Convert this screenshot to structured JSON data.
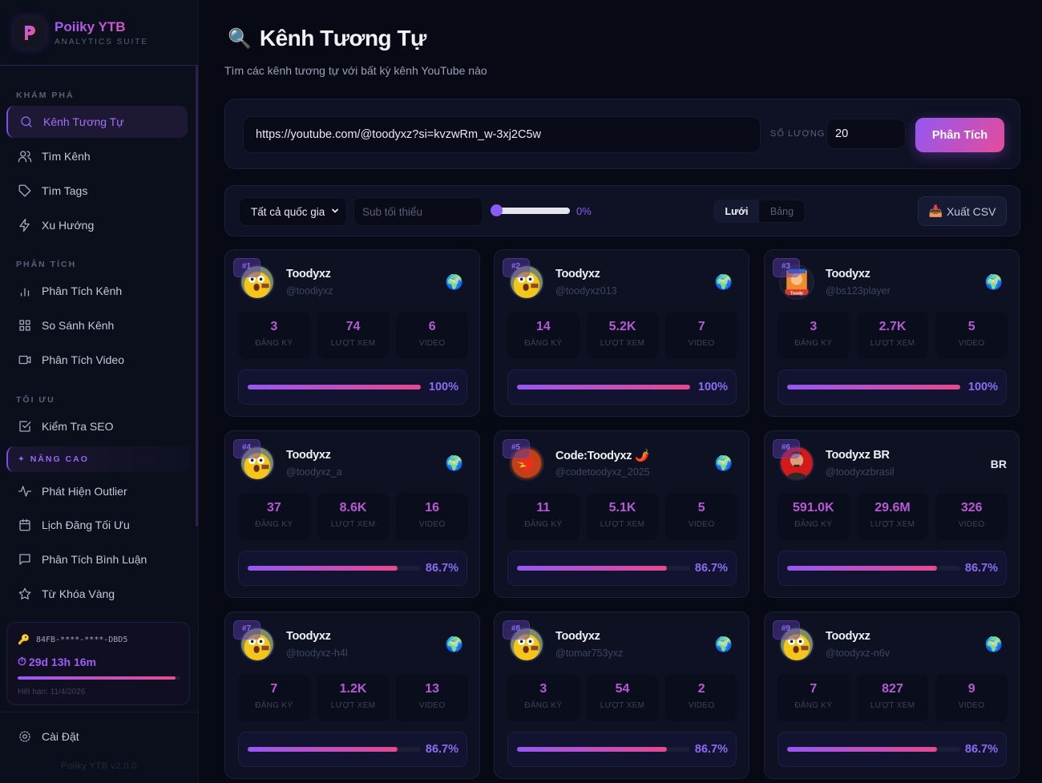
{
  "app": {
    "name": "Poiiky YTB",
    "subtitle": "ANALYTICS SUITE",
    "version": "Poiiky YTB v2.0.0"
  },
  "sidebar": {
    "sections": [
      {
        "label": "KHÁM PHÁ"
      },
      {
        "label": "PHÂN TÍCH"
      },
      {
        "label": "TỐI ƯU"
      }
    ],
    "items": [
      {
        "label": "Kênh Tương Tự",
        "icon": "search-icon",
        "active": true
      },
      {
        "label": "Tìm Kênh",
        "icon": "users-icon"
      },
      {
        "label": "Tìm Tags",
        "icon": "tag-icon"
      },
      {
        "label": "Xu Hướng",
        "icon": "lightning-icon"
      },
      {
        "label": "Phân Tích Kênh",
        "icon": "bar-chart-icon"
      },
      {
        "label": "So Sánh Kênh",
        "icon": "grid-icon"
      },
      {
        "label": "Phân Tích Video",
        "icon": "video-icon"
      },
      {
        "label": "Kiểm Tra SEO",
        "icon": "checkbox-icon"
      },
      {
        "label": "Phát Hiện Outlier",
        "icon": "activity-icon"
      },
      {
        "label": "Lịch Đăng Tối Ưu",
        "icon": "calendar-icon"
      },
      {
        "label": "Phân Tích Bình Luận",
        "icon": "comment-icon"
      },
      {
        "label": "Từ Khóa Vàng",
        "icon": "star-icon"
      },
      {
        "label": "Cài Đặt",
        "icon": "gear-icon"
      }
    ],
    "pro_banner": "✦ NÂNG CAO",
    "license": {
      "key_icon": "🔑",
      "key": "84FB-****-****-DBD5",
      "time_icon": "⏱",
      "remaining": "29d 13h 16m",
      "progress_pct": 97,
      "expires": "Hết hạn: 11/4/2026"
    }
  },
  "page": {
    "title_emoji": "🔍",
    "title": "Kênh Tương Tự",
    "subtitle": "Tìm các kênh tương tự với bất kỳ kênh YouTube nào"
  },
  "search": {
    "url_value": "https://youtube.com/@toodyxz?si=kvzwRm_w-3xj2C5w",
    "qty_label": "SỐ LƯỢNG",
    "qty_value": "20",
    "analyze_label": "Phân Tích"
  },
  "filters": {
    "country_selected": "Tất cả quốc gia",
    "min_sub_placeholder": "Sub tối thiểu",
    "slider_value": "0%",
    "view_grid": "Lưới",
    "view_table": "Bảng",
    "export_icon": "📥",
    "export_label": "Xuất CSV"
  },
  "stat_labels": {
    "subs": "ĐĂNG KÝ",
    "views": "LƯỢT XEM",
    "videos": "VIDEO"
  },
  "channels": [
    {
      "rank": "#1",
      "name": "Toodyxz",
      "handle": "@toodiyxz",
      "country": "🌍",
      "subs": "3",
      "views": "74",
      "videos": "6",
      "match": "100%",
      "match_pct": 100,
      "avatar": "jake"
    },
    {
      "rank": "#2",
      "name": "Toodyxz",
      "handle": "@toodyxz013",
      "country": "🌍",
      "subs": "14",
      "views": "5.2K",
      "videos": "7",
      "match": "100%",
      "match_pct": 100,
      "avatar": "jake"
    },
    {
      "rank": "#3",
      "name": "Toodyxz",
      "handle": "@bs123player",
      "country": "🌍",
      "subs": "3",
      "views": "2.7K",
      "videos": "5",
      "match": "100%",
      "match_pct": 100,
      "avatar": "toody"
    },
    {
      "rank": "#4",
      "name": "Toodyxz",
      "handle": "@toodyxz_a",
      "country": "🌍",
      "subs": "37",
      "views": "8.6K",
      "videos": "16",
      "match": "86.7%",
      "match_pct": 86.7,
      "avatar": "jake"
    },
    {
      "rank": "#5",
      "name": "Code:Toodyxz 🌶️",
      "handle": "@codetoodyxz_2025",
      "country": "🌍",
      "subs": "11",
      "views": "5.1K",
      "videos": "5",
      "match": "86.7%",
      "match_pct": 86.7,
      "avatar": "pepper"
    },
    {
      "rank": "#6",
      "name": "Toodyxz BR",
      "handle": "@toodyxzbrasil",
      "country": "BR",
      "subs": "591.0K",
      "views": "29.6M",
      "videos": "326",
      "match": "86.7%",
      "match_pct": 86.7,
      "avatar": "br"
    },
    {
      "rank": "#7",
      "name": "Toodyxz",
      "handle": "@toodyxz-h4l",
      "country": "🌍",
      "subs": "7",
      "views": "1.2K",
      "videos": "13",
      "match": "86.7%",
      "match_pct": 86.7,
      "avatar": "jake"
    },
    {
      "rank": "#8",
      "name": "Toodyxz",
      "handle": "@tomar753yxz",
      "country": "🌍",
      "subs": "3",
      "views": "54",
      "videos": "2",
      "match": "86.7%",
      "match_pct": 86.7,
      "avatar": "jake"
    },
    {
      "rank": "#9",
      "name": "Toodyxz",
      "handle": "@toodyxz-n6v",
      "country": "🌍",
      "subs": "7",
      "views": "827",
      "videos": "9",
      "match": "86.7%",
      "match_pct": 86.7,
      "avatar": "jake"
    }
  ],
  "colors": {
    "accent_purple": "#8b5cf6",
    "accent_pink": "#e54c9a",
    "stat_value": "#b659d4",
    "bg": "#070a14",
    "panel": "#0e1224"
  }
}
